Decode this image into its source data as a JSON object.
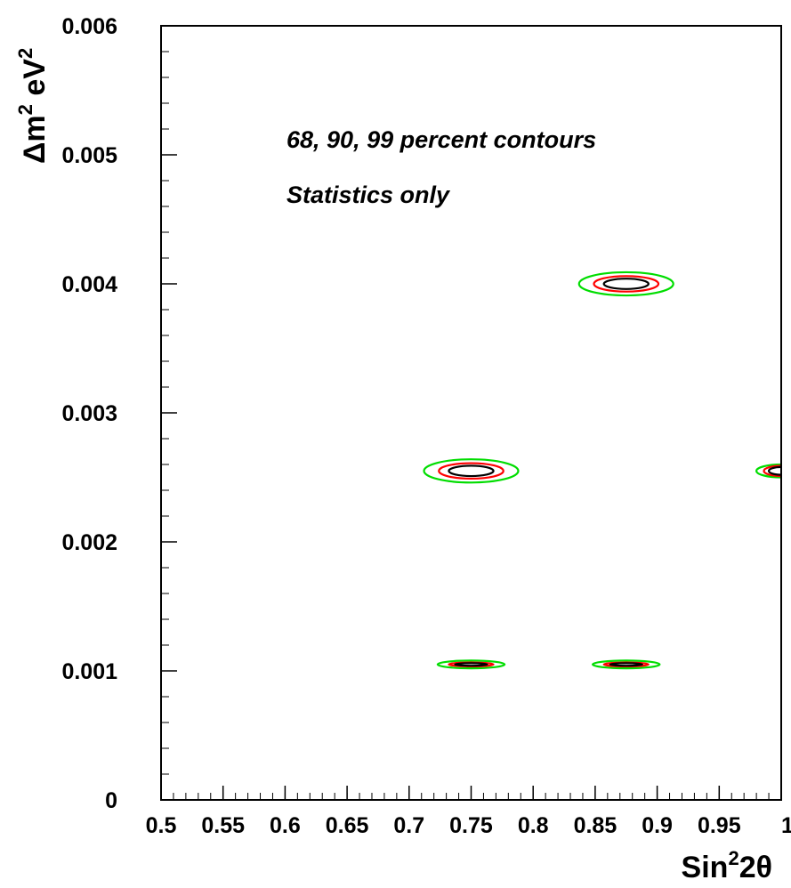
{
  "chart_data": {
    "type": "contour",
    "xlabel": {
      "base": "Sin",
      "sup": "2",
      "tail": "2θ"
    },
    "ylabel": {
      "delta": "Δ",
      "m": "m",
      "m_sup": "2",
      "unit": " eV",
      "unit_sup": "2"
    },
    "xlim": [
      0.5,
      1.0
    ],
    "ylim": [
      0,
      0.006
    ],
    "x_ticks": [
      {
        "value": 0.5,
        "label": "0.5"
      },
      {
        "value": 0.55,
        "label": "0.55"
      },
      {
        "value": 0.6,
        "label": "0.6"
      },
      {
        "value": 0.65,
        "label": "0.65"
      },
      {
        "value": 0.7,
        "label": "0.7"
      },
      {
        "value": 0.75,
        "label": "0.75"
      },
      {
        "value": 0.8,
        "label": "0.8"
      },
      {
        "value": 0.85,
        "label": "0.85"
      },
      {
        "value": 0.9,
        "label": "0.9"
      },
      {
        "value": 0.95,
        "label": "0.95"
      },
      {
        "value": 1.0,
        "label": "1"
      }
    ],
    "y_ticks": [
      {
        "value": 0,
        "label": "0"
      },
      {
        "value": 0.001,
        "label": "0.001"
      },
      {
        "value": 0.002,
        "label": "0.002"
      },
      {
        "value": 0.003,
        "label": "0.003"
      },
      {
        "value": 0.004,
        "label": "0.004"
      },
      {
        "value": 0.005,
        "label": "0.005"
      },
      {
        "value": 0.006,
        "label": "0.006"
      }
    ],
    "annotations": [
      "68, 90, 99 percent contours",
      "Statistics only"
    ],
    "contour_levels": [
      {
        "level": "68",
        "color": "#000000"
      },
      {
        "level": "90",
        "color": "#ff0000"
      },
      {
        "level": "99",
        "color": "#00dd00"
      }
    ],
    "fits": [
      {
        "x": 0.75,
        "y": 0.00255,
        "half_width_x": {
          "68": 0.018,
          "90": 0.026,
          "99": 0.038
        },
        "half_width_y": {
          "68": 4e-05,
          "90": 6e-05,
          "99": 9e-05
        }
      },
      {
        "x": 0.875,
        "y": 0.004,
        "half_width_x": {
          "68": 0.018,
          "90": 0.026,
          "99": 0.038
        },
        "half_width_y": {
          "68": 4e-05,
          "90": 6e-05,
          "99": 9e-05
        }
      },
      {
        "x": 1.0,
        "y": 0.00255,
        "half_width_x": {
          "68": 0.01,
          "90": 0.014,
          "99": 0.02
        },
        "half_width_y": {
          "68": 3e-05,
          "90": 4e-05,
          "99": 5e-05
        }
      },
      {
        "x": 0.75,
        "y": 0.00105,
        "half_width_x": {
          "68": 0.013,
          "90": 0.018,
          "99": 0.027
        },
        "half_width_y": {
          "68": 1e-05,
          "90": 1.5e-05,
          "99": 3e-05
        }
      },
      {
        "x": 0.875,
        "y": 0.00105,
        "half_width_x": {
          "68": 0.013,
          "90": 0.018,
          "99": 0.027
        },
        "half_width_y": {
          "68": 1e-05,
          "90": 1.5e-05,
          "99": 3e-05
        }
      }
    ],
    "grid": false,
    "legend": "none"
  }
}
